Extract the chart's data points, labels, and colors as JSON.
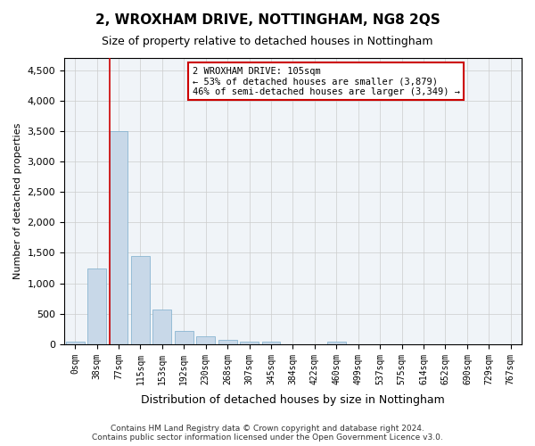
{
  "title": "2, WROXHAM DRIVE, NOTTINGHAM, NG8 2QS",
  "subtitle": "Size of property relative to detached houses in Nottingham",
  "xlabel": "Distribution of detached houses by size in Nottingham",
  "ylabel": "Number of detached properties",
  "bar_color": "#c8d8e8",
  "bar_edge_color": "#7aaccc",
  "annotation_box_color": "#cc0000",
  "grid_color": "#cccccc",
  "background_color": "#f0f4f8",
  "categories": [
    "0sqm",
    "38sqm",
    "77sqm",
    "115sqm",
    "153sqm",
    "192sqm",
    "230sqm",
    "268sqm",
    "307sqm",
    "345sqm",
    "384sqm",
    "422sqm",
    "460sqm",
    "499sqm",
    "537sqm",
    "575sqm",
    "614sqm",
    "652sqm",
    "690sqm",
    "729sqm",
    "767sqm"
  ],
  "values": [
    45,
    1250,
    3500,
    1450,
    575,
    225,
    125,
    75,
    50,
    50,
    0,
    0,
    40,
    0,
    0,
    0,
    0,
    0,
    0,
    0,
    0
  ],
  "ylim": [
    0,
    4700
  ],
  "yticks": [
    0,
    500,
    1000,
    1500,
    2000,
    2500,
    3000,
    3500,
    4000,
    4500
  ],
  "property_line_x": 2,
  "annotation_text": "2 WROXHAM DRIVE: 105sqm\n← 53% of detached houses are smaller (3,879)\n46% of semi-detached houses are larger (3,349) →",
  "footer_line1": "Contains HM Land Registry data © Crown copyright and database right 2024.",
  "footer_line2": "Contains public sector information licensed under the Open Government Licence v3.0."
}
